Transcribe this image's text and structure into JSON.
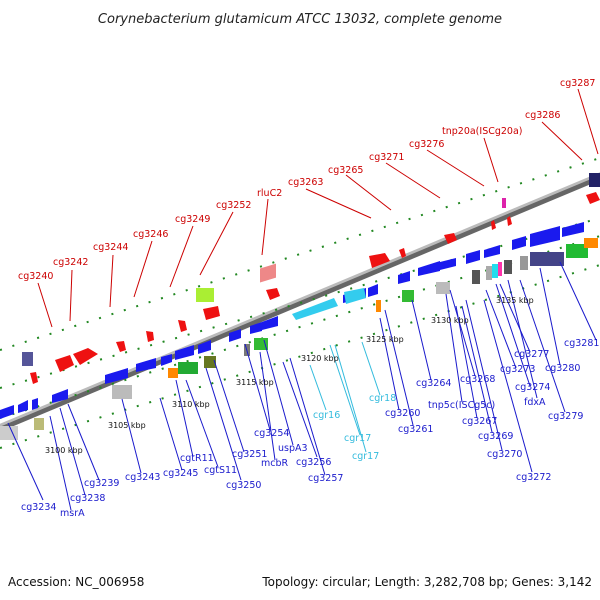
{
  "title": "Corynebacterium glutamicum ATCC 13032, complete genome",
  "footer": {
    "accession": "Accession: NC_006958",
    "summary": "Topology: circular; Length: 3,282,708 bp; Genes: 3,142"
  },
  "ticks": [
    "3100 kbp",
    "3105 kbp",
    "3110 kbp",
    "3115 kbp",
    "3120 kbp",
    "3125 kbp",
    "3130 kbp",
    "3135 kbp"
  ],
  "labels_top": [
    "cg3240",
    "cg3242",
    "cg3244",
    "cg3246",
    "cg3249",
    "cg3252",
    "rluC2",
    "cg3263",
    "cg3265",
    "cg3271",
    "cg3276",
    "tnp20a(ISCg20a)",
    "cg3286",
    "cg3287"
  ],
  "labels_bottom": [
    "cg3234",
    "msrA",
    "cg3238",
    "cg3239",
    "cg3243",
    "cg3245",
    "cgtR11",
    "cgtS11",
    "cg3250",
    "cg3251",
    "cg3254",
    "mcbR",
    "uspA3",
    "cg3256",
    "cg3257",
    "cgr16",
    "cgr17",
    "cgr17",
    "cgr18",
    "cg3260",
    "cg3261",
    "cg3264",
    "tnp5c(ISCg5c)",
    "cg3268",
    "cg3267",
    "cg3269",
    "cg3270",
    "cg3272",
    "cg3273",
    "cg3274",
    "cg3277",
    "fdxA",
    "cg3279",
    "cg3280",
    "cg3281"
  ],
  "colors": {
    "forward_gene": "#ff0000",
    "reverse_gene": "#1a1aee",
    "rna_gene": "#33ccee",
    "backbone": "#888888",
    "tick_mark": "#228822",
    "top_label": "#cc0000",
    "bottom_label": "#1a1acc",
    "rna_label": "#33bbdd"
  }
}
